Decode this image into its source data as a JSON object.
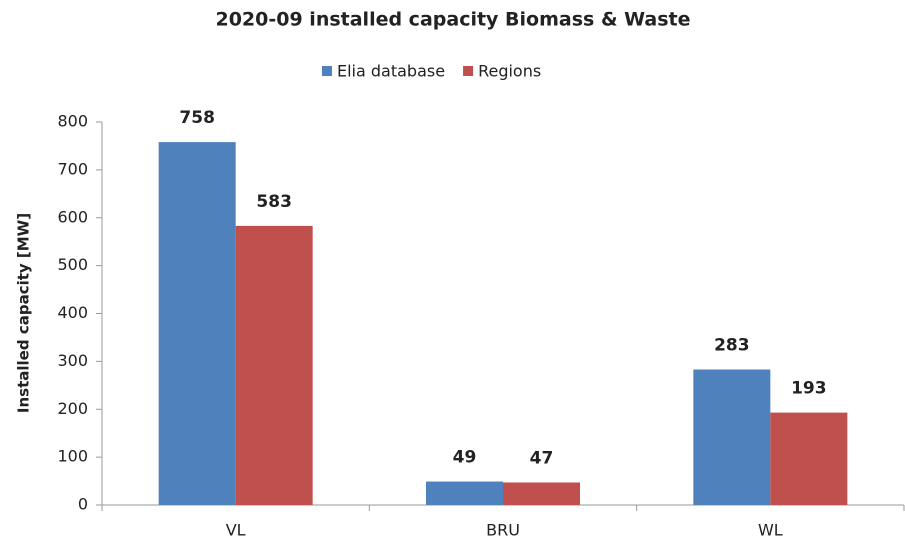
{
  "chart_data": {
    "type": "bar",
    "title": "2020-09 installed capacity Biomass & Waste",
    "ylabel": "Installed capacity [MW]",
    "categories": [
      "VL",
      "BRU",
      "WL"
    ],
    "series": [
      {
        "name": "Elia database",
        "color": "#4f81bd",
        "values": [
          758,
          49,
          283
        ]
      },
      {
        "name": "Regions",
        "color": "#c0504d",
        "values": [
          583,
          47,
          193
        ]
      }
    ],
    "ylim": [
      0,
      800
    ],
    "yticks": [
      0,
      100,
      200,
      300,
      400,
      500,
      600,
      700,
      800
    ],
    "grid": false,
    "legend": "top"
  }
}
